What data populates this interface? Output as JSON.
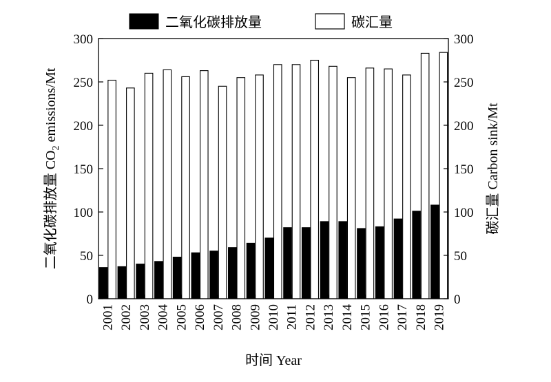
{
  "chart_data": {
    "type": "bar",
    "categories": [
      "2001",
      "2002",
      "2003",
      "2004",
      "2005",
      "2006",
      "2007",
      "2008",
      "2009",
      "2010",
      "2011",
      "2012",
      "2013",
      "2014",
      "2015",
      "2016",
      "2017",
      "2018",
      "2019"
    ],
    "series": [
      {
        "name": "二氧化碳排放量",
        "color": "#000000",
        "axis": "left",
        "values": [
          36,
          37,
          40,
          43,
          48,
          53,
          55,
          59,
          64,
          70,
          82,
          82,
          89,
          89,
          81,
          83,
          92,
          101,
          108
        ]
      },
      {
        "name": "碳汇量",
        "color": "#ffffff",
        "axis": "right",
        "values": [
          252,
          243,
          260,
          264,
          256,
          263,
          245,
          255,
          258,
          270,
          270,
          275,
          268,
          255,
          266,
          265,
          258,
          283,
          284
        ]
      }
    ],
    "xlabel": "时间 Year",
    "ylabel": "二氧化碳排放量 CO2 emissions/Mt",
    "ylabel_right": "碳汇量 Carbon sink/Mt",
    "ylim": [
      0,
      300
    ],
    "ylim_right": [
      0,
      300
    ],
    "yticks": [
      0,
      50,
      100,
      150,
      200,
      250,
      300
    ],
    "legend_position": "top-center",
    "grid": false
  }
}
